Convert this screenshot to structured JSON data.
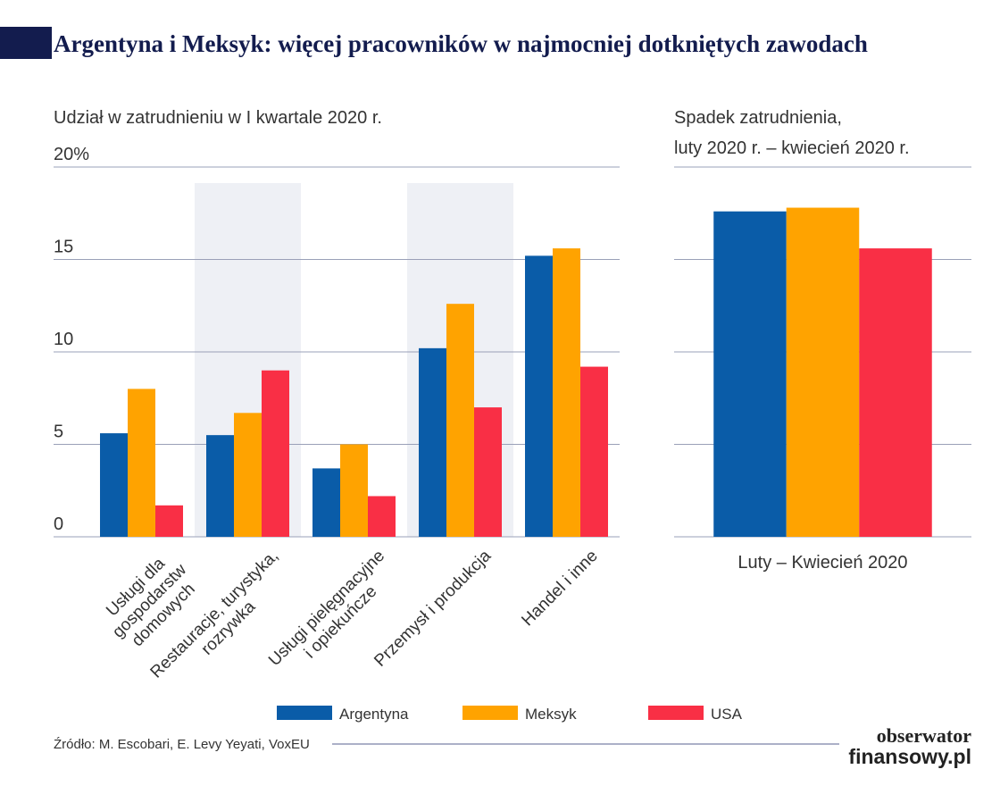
{
  "title": "Argentyna i Meksyk: więcej pracowników w najmocniej dotkniętych zawodach",
  "source": "Źródło: M. Escobari, E. Levy Yeyati, VoxEU",
  "logo": [
    "obserwator",
    "finansowy.pl"
  ],
  "chart_data": [
    {
      "type": "bar",
      "subtitle": "Udział w zatrudnieniu w I kwartale 2020 r.",
      "categories": [
        "Usługi dla\ngospodarstw\ndomowych",
        "Restauracje, turystyka,\nrozrywka",
        "Usługi pielęgnacyjne\ni opiekuńcze",
        "Przemysł i produkcja",
        "Handel i inne"
      ],
      "series": [
        {
          "name": "Argentyna",
          "color": "#0a5ca8",
          "values": [
            5.6,
            5.5,
            3.7,
            10.2,
            15.2
          ]
        },
        {
          "name": "Meksyk",
          "color": "#ffa300",
          "values": [
            8.0,
            6.7,
            5.0,
            12.6,
            15.6
          ]
        },
        {
          "name": "USA",
          "color": "#f92f45",
          "values": [
            1.7,
            9.0,
            2.2,
            7.0,
            9.2
          ]
        }
      ],
      "ylim": [
        0,
        20
      ],
      "yticks": [
        0,
        5,
        10,
        15,
        {
          "value": 20,
          "label": "20%"
        }
      ],
      "grid": true
    },
    {
      "type": "bar",
      "subtitle": [
        "Spadek zatrudnienia,",
        "luty 2020 r. – kwiecień 2020 r."
      ],
      "categories": [
        "Luty – Kwiecień 2020"
      ],
      "series": [
        {
          "color": "#0a5ca8",
          "values": [
            17.6
          ]
        },
        {
          "color": "#ffa300",
          "values": [
            17.8
          ]
        },
        {
          "color": "#f92f45",
          "values": [
            15.6
          ]
        }
      ],
      "ylim": [
        0,
        20
      ],
      "yticks": [
        0,
        5,
        10,
        15,
        20
      ],
      "ytick_labels": false,
      "grid": true
    }
  ]
}
